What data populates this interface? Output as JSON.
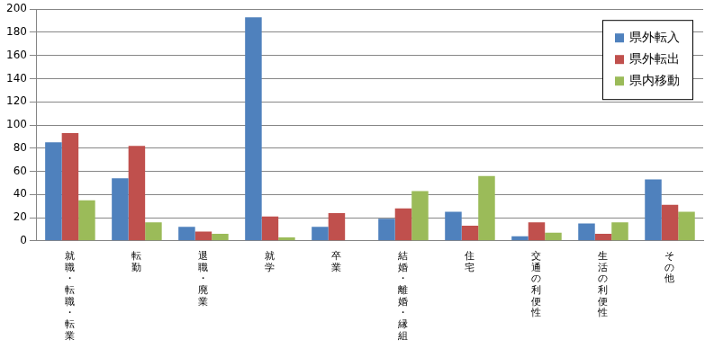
{
  "chart_data": {
    "type": "bar",
    "categories": [
      "就職・転職・転業",
      "転勤",
      "退職・廃業",
      "就学",
      "卒業",
      "結婚・離婚・縁組",
      "住宅",
      "交通の利便性",
      "生活の利便性",
      "その他"
    ],
    "series": [
      {
        "name": "県外転入",
        "color": "#4f81bd",
        "values": [
          85,
          54,
          12,
          193,
          12,
          19,
          25,
          4,
          15,
          53
        ]
      },
      {
        "name": "県外転出",
        "color": "#c0504d",
        "values": [
          93,
          82,
          8,
          21,
          24,
          28,
          13,
          16,
          6,
          31
        ]
      },
      {
        "name": "県内移動",
        "color": "#9bbb59",
        "values": [
          35,
          16,
          6,
          3,
          0,
          43,
          56,
          7,
          16,
          25
        ]
      }
    ],
    "ylim": [
      0,
      200
    ],
    "yticks": [
      0,
      20,
      40,
      60,
      80,
      100,
      120,
      140,
      160,
      180,
      200
    ],
    "grid": true,
    "legend": "upper right"
  }
}
